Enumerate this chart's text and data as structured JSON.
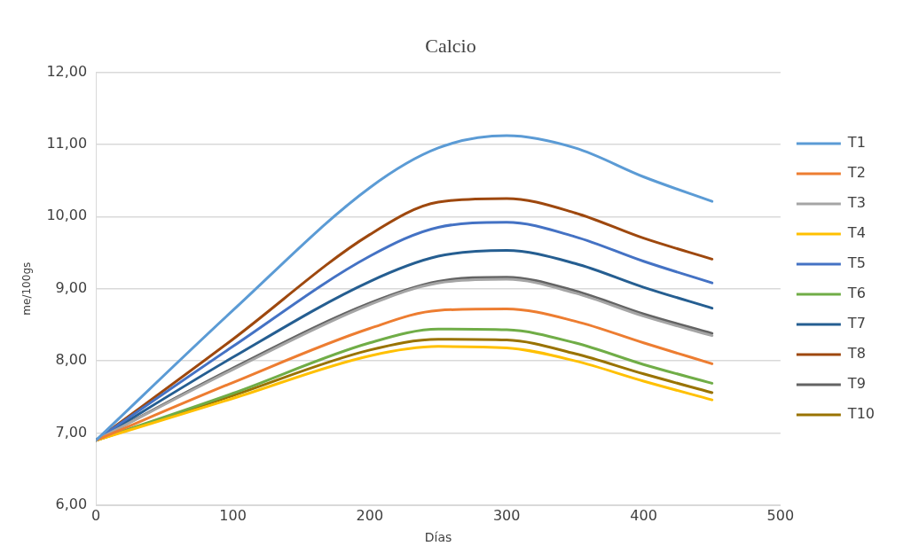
{
  "chart_data": {
    "type": "line",
    "title": "Calcio",
    "xlabel": "Días",
    "ylabel": "me/100gs",
    "x": [
      0,
      100,
      200,
      250,
      300,
      350,
      400,
      450
    ],
    "series": [
      {
        "name": "T1",
        "color": "#5b9bd5",
        "values": [
          6.9,
          8.7,
          10.4,
          10.95,
          11.12,
          10.95,
          10.55,
          10.21
        ]
      },
      {
        "name": "T2",
        "color": "#ed7d31",
        "values": [
          6.9,
          7.7,
          8.45,
          8.7,
          8.72,
          8.55,
          8.25,
          7.96
        ]
      },
      {
        "name": "T3",
        "color": "#a5a5a5",
        "values": [
          6.9,
          7.88,
          8.78,
          9.08,
          9.13,
          8.94,
          8.62,
          8.35
        ]
      },
      {
        "name": "T4",
        "color": "#ffc000",
        "values": [
          6.9,
          7.48,
          8.07,
          8.2,
          8.18,
          8.0,
          7.72,
          7.46
        ]
      },
      {
        "name": "T5",
        "color": "#4472c4",
        "values": [
          6.9,
          8.2,
          9.45,
          9.85,
          9.92,
          9.72,
          9.38,
          9.08
        ]
      },
      {
        "name": "T6",
        "color": "#70ad47",
        "values": [
          6.9,
          7.55,
          8.25,
          8.44,
          8.43,
          8.25,
          7.95,
          7.69
        ]
      },
      {
        "name": "T7",
        "color": "#255e91",
        "values": [
          6.9,
          8.05,
          9.1,
          9.45,
          9.53,
          9.35,
          9.02,
          8.73
        ]
      },
      {
        "name": "T8",
        "color": "#9e480e",
        "values": [
          6.9,
          8.3,
          9.75,
          10.2,
          10.25,
          10.05,
          9.7,
          9.41
        ]
      },
      {
        "name": "T9",
        "color": "#636363",
        "values": [
          6.9,
          7.9,
          8.8,
          9.1,
          9.16,
          8.97,
          8.65,
          8.38
        ]
      },
      {
        "name": "T10",
        "color": "#997300",
        "values": [
          6.9,
          7.52,
          8.15,
          8.3,
          8.29,
          8.1,
          7.82,
          7.56
        ]
      }
    ],
    "xlim": [
      0,
      500
    ],
    "xticks": [
      0,
      100,
      200,
      300,
      400,
      500
    ],
    "ylim": [
      6,
      12
    ],
    "yticks": [
      {
        "value": 6,
        "label": "6,00"
      },
      {
        "value": 7,
        "label": "7,00"
      },
      {
        "value": 8,
        "label": "8,00"
      },
      {
        "value": 9,
        "label": "9,00"
      },
      {
        "value": 10,
        "label": "10,00"
      },
      {
        "value": 11,
        "label": "11,00"
      },
      {
        "value": 12,
        "label": "12,00"
      }
    ],
    "grid": "y",
    "legend": "right",
    "marker": "none",
    "line_style": "solid"
  }
}
